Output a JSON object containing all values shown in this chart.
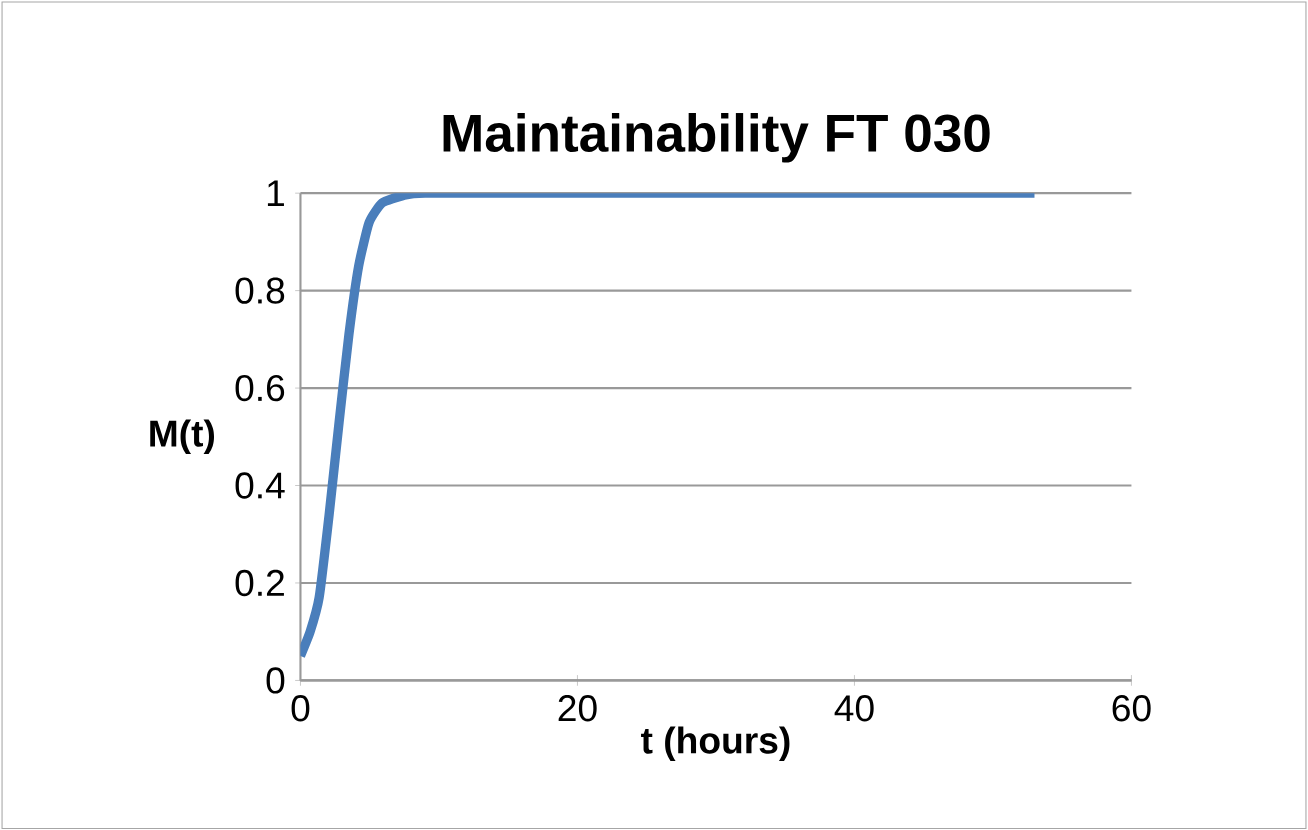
{
  "chart_data": {
    "type": "line",
    "title": "Maintainability FT 030",
    "xlabel": "t (hours)",
    "ylabel": "M(t)",
    "x": [
      0,
      0.7,
      1.35,
      2.07,
      2.79,
      3.5,
      4.2,
      4.96,
      5.9,
      7.4,
      9,
      20,
      35,
      53
    ],
    "series": [
      {
        "color": "#4a7ebb",
        "values": [
          0.05,
          0.1,
          0.17,
          0.34,
          0.53,
          0.71,
          0.85,
          0.94,
          0.98,
          0.995,
          1,
          1,
          1,
          1
        ]
      }
    ],
    "xlim": [
      0,
      60
    ],
    "xticks": [
      0,
      20,
      40,
      60
    ],
    "ylim": [
      0,
      1
    ],
    "yticks": [
      0,
      0.2,
      0.4,
      0.6,
      0.8,
      1
    ],
    "grid": "y",
    "marker": "none",
    "line_style": "solid"
  }
}
